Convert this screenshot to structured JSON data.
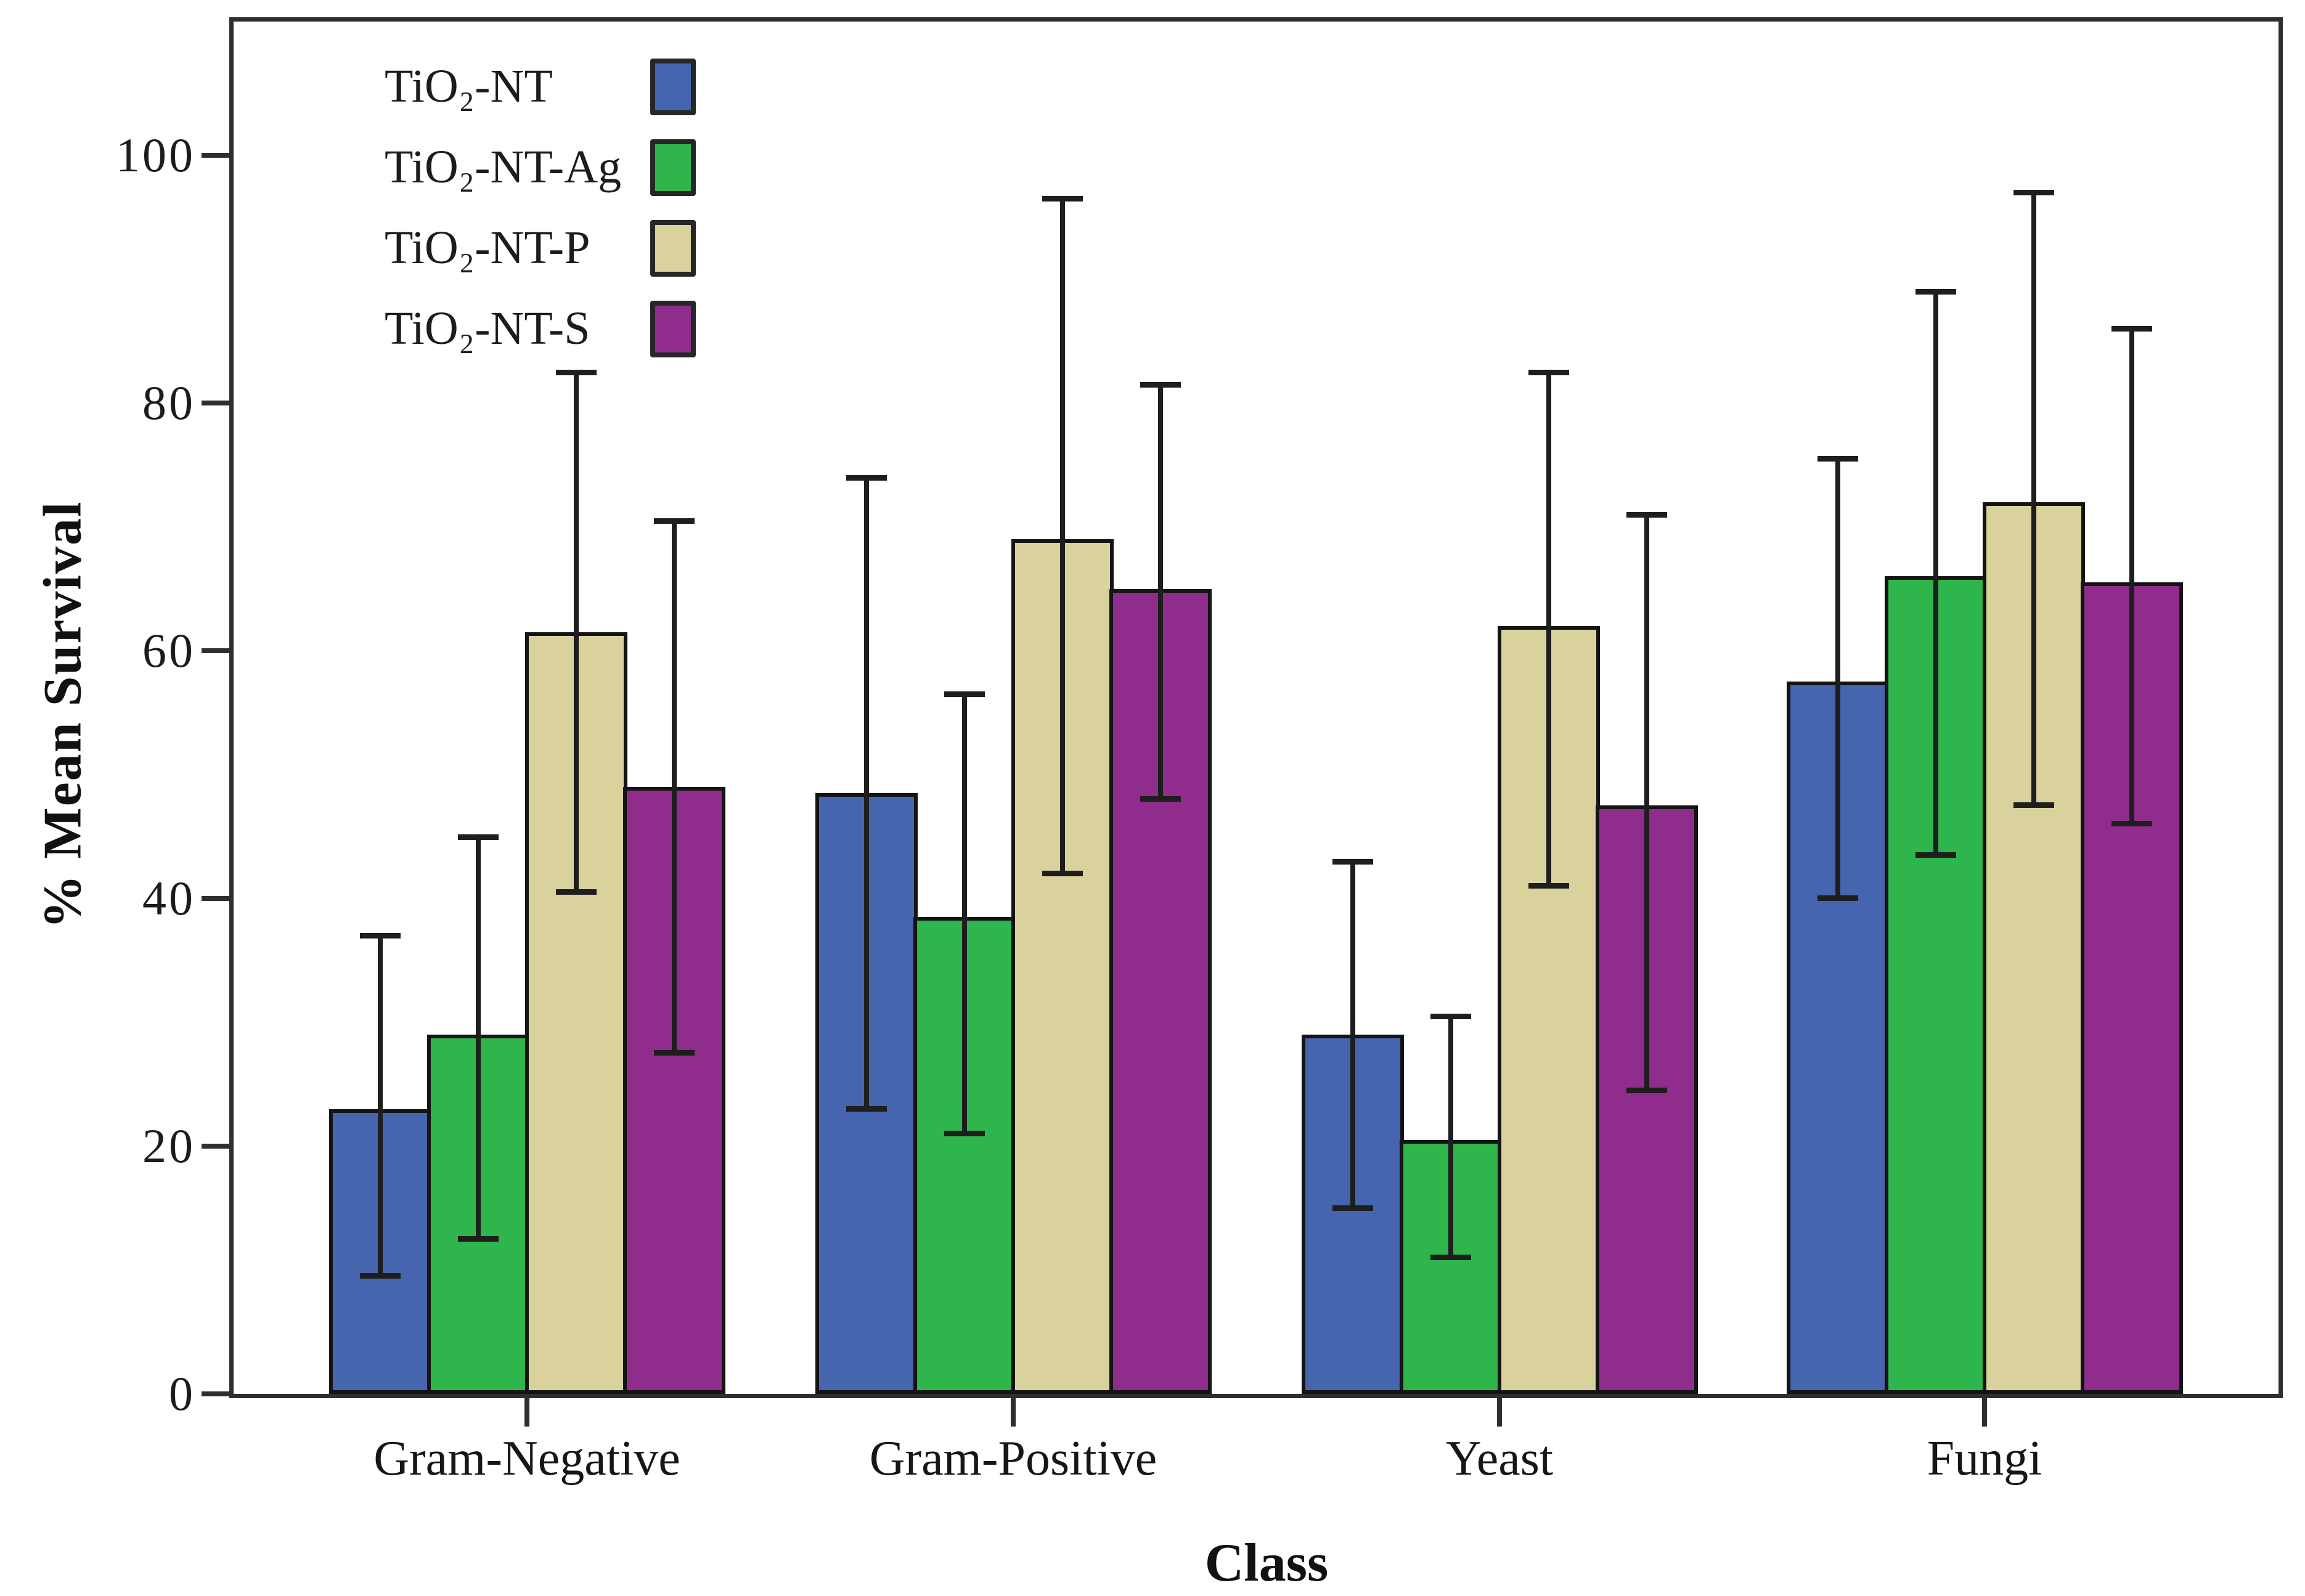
{
  "figure": {
    "background": "#ffffff",
    "frame_color": "#2e2e2e"
  },
  "chart_data": {
    "type": "bar",
    "title": "",
    "xlabel": "Class",
    "ylabel": "% Mean Survival",
    "ylim": [
      0,
      110
    ],
    "yticks": [
      0,
      20,
      40,
      60,
      80,
      100
    ],
    "grid": false,
    "legend_position": "top-left",
    "error_bars": true,
    "categories": [
      "Gram-Negative",
      "Gram-Positive",
      "Yeast",
      "Fungi"
    ],
    "series": [
      {
        "name": "TiO₂-NT",
        "color": "#4565ae",
        "values": [
          23,
          48.5,
          29,
          57.5
        ],
        "err_low": [
          9.5,
          23,
          15,
          40
        ],
        "err_high": [
          37,
          74,
          43,
          75.5
        ]
      },
      {
        "name": "TiO₂-NT-Ag",
        "color": "#2eb54b",
        "values": [
          29,
          38.5,
          20.5,
          66
        ],
        "err_low": [
          12.5,
          21,
          11,
          43.5
        ],
        "err_high": [
          45,
          56.5,
          30.5,
          89
        ]
      },
      {
        "name": "TiO₂-NT-P",
        "color": "#d9d29c",
        "values": [
          61.5,
          69,
          62,
          72
        ],
        "err_low": [
          40.5,
          42,
          41,
          47.5
        ],
        "err_high": [
          82.5,
          96.5,
          82.5,
          97
        ]
      },
      {
        "name": "TiO₂-NT-S",
        "color": "#8f2c8c",
        "values": [
          49,
          65,
          47.5,
          65.5
        ],
        "err_low": [
          27.5,
          48,
          24.5,
          46
        ],
        "err_high": [
          70.5,
          81.5,
          71,
          86
        ]
      }
    ]
  }
}
